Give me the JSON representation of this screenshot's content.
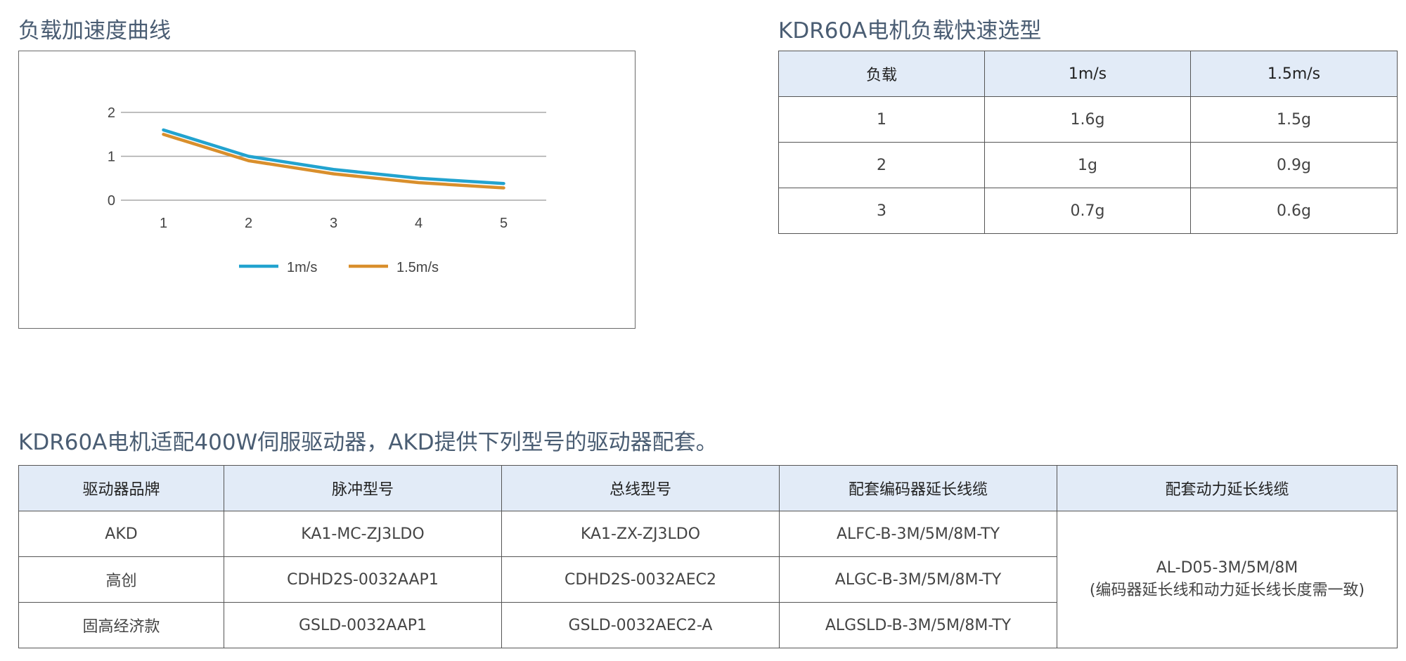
{
  "chart_section": {
    "title": "负载加速度曲线"
  },
  "chart_data": {
    "type": "line",
    "title": "",
    "xlabel": "",
    "ylabel": "",
    "x": [
      1,
      2,
      3,
      4,
      5
    ],
    "xticks": [
      "1",
      "2",
      "3",
      "4",
      "5"
    ],
    "yticks": [
      "0",
      "1",
      "2"
    ],
    "ylim": [
      0,
      2
    ],
    "grid": true,
    "legend": "bottom",
    "series": [
      {
        "name": "1m/s",
        "color": "#22a3cf",
        "values": [
          1.6,
          1.0,
          0.7,
          0.5,
          0.38
        ]
      },
      {
        "name": "1.5m/s",
        "color": "#d98f2c",
        "values": [
          1.5,
          0.9,
          0.6,
          0.4,
          0.28
        ]
      }
    ]
  },
  "quick_select": {
    "title": "KDR60A电机负载快速选型",
    "headers": [
      "负载",
      "1m/s",
      "1.5m/s"
    ],
    "rows": [
      [
        "1",
        "1.6g",
        "1.5g"
      ],
      [
        "2",
        "1g",
        "0.9g"
      ],
      [
        "3",
        "0.7g",
        "0.6g"
      ]
    ]
  },
  "drivers": {
    "title": "KDR60A电机适配400W伺服驱动器，AKD提供下列型号的驱动器配套。",
    "headers": [
      "驱动器品牌",
      "脉冲型号",
      "总线型号",
      "配套编码器延长线缆",
      "配套动力延长线缆"
    ],
    "rows": [
      [
        "AKD",
        "KA1-MC-ZJ3LDO",
        "KA1-ZX-ZJ3LDO",
        "ALFC-B-3M/5M/8M-TY"
      ],
      [
        "高创",
        "CDHD2S-0032AAP1",
        "CDHD2S-0032AEC2",
        "ALGC-B-3M/5M/8M-TY"
      ],
      [
        "固高经济款",
        "GSLD-0032AAP1",
        "GSLD-0032AEC2-A",
        "ALGSLD-B-3M/5M/8M-TY"
      ]
    ],
    "power_cable": {
      "line1": "AL-D05-3M/5M/8M",
      "line2": "(编码器延长线和动力延长线长度需一致)"
    }
  }
}
